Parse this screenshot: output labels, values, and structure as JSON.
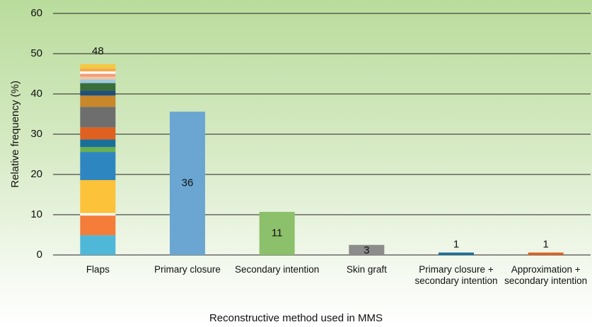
{
  "chart_data": {
    "type": "stacked-bar",
    "y_label": "Relative frequency (%)",
    "x_label": "Reconstructive method used in MMS",
    "ylim": [
      0,
      60
    ],
    "yticks": [
      0,
      10,
      20,
      30,
      40,
      50,
      60
    ],
    "grid": true,
    "bars": [
      {
        "category": "Flaps",
        "label": "48",
        "segments": [
          {
            "value": 4.9,
            "color": "#4fb8d8"
          },
          {
            "value": 4.9,
            "color": "#f47d3a"
          },
          {
            "value": 0.6,
            "color": "#ffffff"
          },
          {
            "value": 8.2,
            "color": "#fcc23a"
          },
          {
            "value": 7.0,
            "color": "#2e86c1"
          },
          {
            "value": 1.2,
            "color": "#6ab04c"
          },
          {
            "value": 1.9,
            "color": "#1a6f9a"
          },
          {
            "value": 3.0,
            "color": "#e06020"
          },
          {
            "value": 5.1,
            "color": "#6e6e6e"
          },
          {
            "value": 2.8,
            "color": "#c8872a"
          },
          {
            "value": 1.2,
            "color": "#1f4f7a"
          },
          {
            "value": 1.9,
            "color": "#3a6e3a"
          },
          {
            "value": 0.9,
            "color": "#9ecae1"
          },
          {
            "value": 0.7,
            "color": "#f4c7a0"
          },
          {
            "value": 0.7,
            "color": "#f39c7b"
          },
          {
            "value": 0.6,
            "color": "#ffffff"
          },
          {
            "value": 0.7,
            "color": "#f6a94a"
          },
          {
            "value": 1.1,
            "color": "#f5c842"
          }
        ]
      },
      {
        "category": "Primary closure",
        "label": "36",
        "segments": [
          {
            "value": 35.6,
            "color": "#6ba6d3"
          }
        ]
      },
      {
        "category": "Secondary intention",
        "label": "11",
        "segments": [
          {
            "value": 10.7,
            "color": "#8cc06a"
          }
        ]
      },
      {
        "category": "Skin graft",
        "label": "3",
        "segments": [
          {
            "value": 2.5,
            "color": "#8c8c8c"
          }
        ]
      },
      {
        "category": "Primary closure + secondary intention",
        "label": "1",
        "segments": [
          {
            "value": 0.6,
            "color": "#1a6f9a"
          }
        ]
      },
      {
        "category": "Approximation + secondary intention",
        "label": "1",
        "segments": [
          {
            "value": 0.6,
            "color": "#e06020"
          }
        ]
      }
    ]
  }
}
